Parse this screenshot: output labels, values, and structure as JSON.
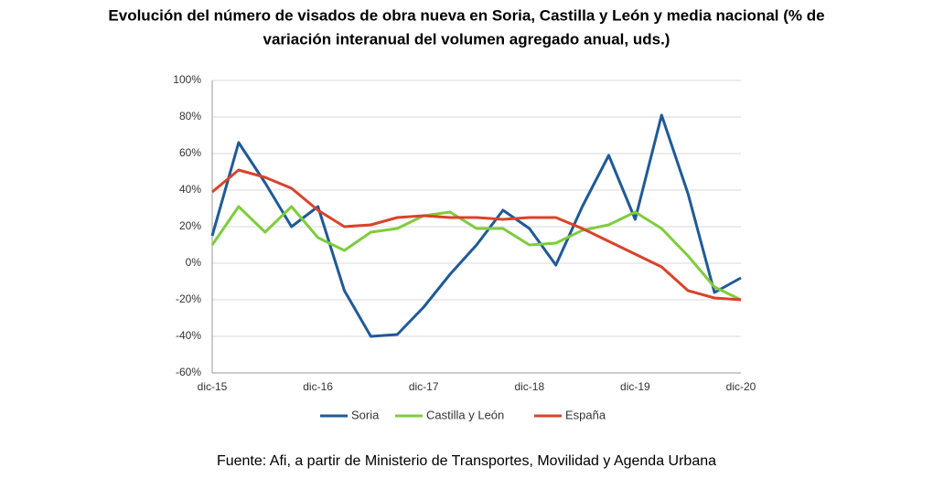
{
  "chart_data": {
    "type": "line",
    "title": [
      "Evolución del número de visados de obra nueva en Soria, Castilla y León y media nacional (% de",
      "variación interanual del volumen agregado anual, uds.)"
    ],
    "categories": [
      "dic-15",
      null,
      null,
      null,
      "dic-16",
      null,
      null,
      null,
      "dic-17",
      null,
      null,
      null,
      "dic-18",
      null,
      null,
      null,
      "dic-19",
      null,
      null,
      null,
      "dic-20"
    ],
    "series": [
      {
        "name": "Soria",
        "color": "#1f5a96",
        "values": [
          15,
          66,
          44,
          20,
          31,
          -15,
          -40,
          -39,
          -24,
          -6,
          10,
          29,
          19,
          -1,
          31,
          59,
          24,
          81,
          38,
          -16,
          -8
        ]
      },
      {
        "name": "Castilla y León",
        "color": "#7fcc3c",
        "values": [
          10,
          31,
          17,
          31,
          14,
          7,
          17,
          19,
          26,
          28,
          19,
          19,
          10,
          11,
          18,
          21,
          28,
          19,
          4,
          -13,
          -20
        ]
      },
      {
        "name": "España",
        "color": "#d9432b",
        "values": [
          39,
          51,
          47,
          41,
          29,
          20,
          21,
          25,
          26,
          25,
          25,
          24,
          25,
          25,
          19,
          12,
          5,
          -2,
          -15,
          -19,
          -20
        ]
      }
    ],
    "ylim": [
      -60,
      100
    ],
    "yticks": [
      {
        "value": -60,
        "label": "-60%"
      },
      {
        "value": -40,
        "label": "-40%"
      },
      {
        "value": -20,
        "label": "-20%"
      },
      {
        "value": 0,
        "label": "0%"
      },
      {
        "value": 20,
        "label": "20%"
      },
      {
        "value": 40,
        "label": "40%"
      },
      {
        "value": 60,
        "label": "60%"
      },
      {
        "value": 80,
        "label": "80%"
      },
      {
        "value": 100,
        "label": "100%"
      }
    ],
    "grid": true,
    "legend": "bottom",
    "source": "Fuente: Afi, a partir de Ministerio de Transportes, Movilidad y Agenda Urbana"
  }
}
